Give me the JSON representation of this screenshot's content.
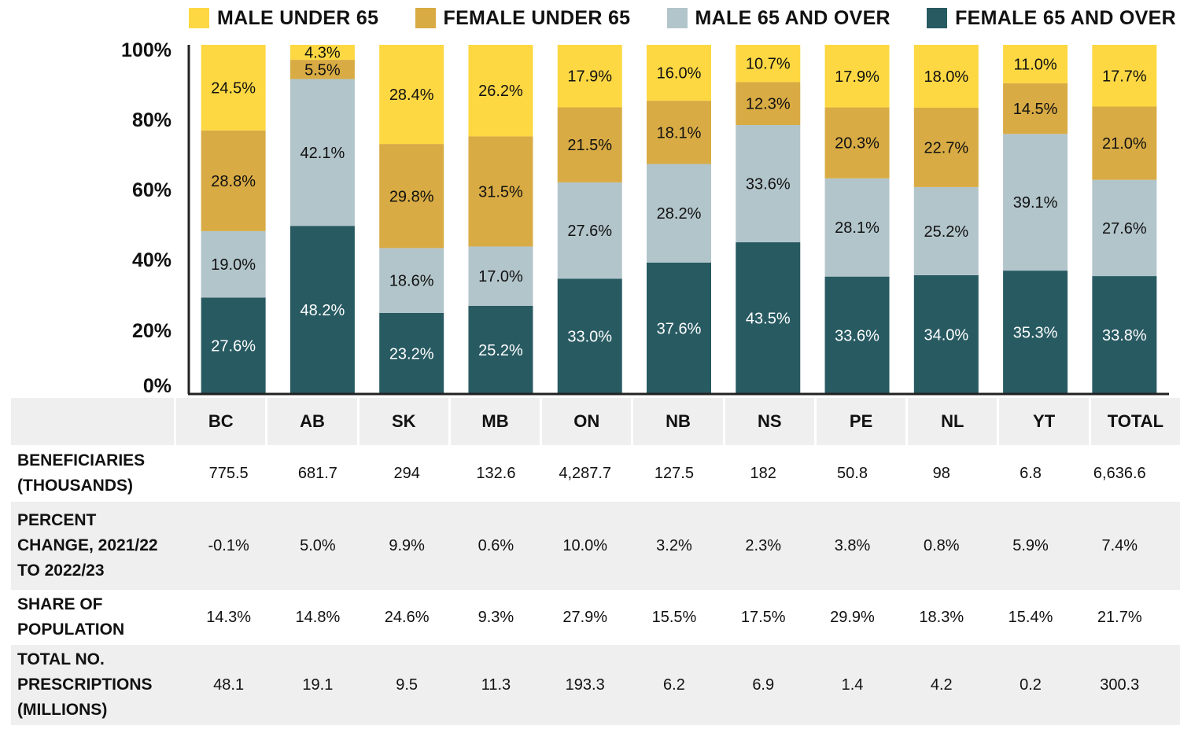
{
  "chart_data": {
    "type": "bar",
    "stacked": true,
    "categories": [
      "BC",
      "AB",
      "SK",
      "MB",
      "ON",
      "NB",
      "NS",
      "PE",
      "NL",
      "YT",
      "TOTAL"
    ],
    "series": [
      {
        "name": "FEMALE 65 AND OVER",
        "color": "#285a62",
        "values": [
          27.6,
          48.2,
          23.2,
          25.2,
          33.0,
          37.6,
          43.5,
          33.6,
          34.0,
          35.3,
          33.8
        ],
        "labels": [
          "27.6%",
          "48.2%",
          "23.2%",
          "25.2%",
          "33.0%",
          "37.6%",
          "43.5%",
          "33.6%",
          "34.0%",
          "35.3%",
          "33.8%"
        ]
      },
      {
        "name": "MALE 65 AND OVER",
        "color": "#b2c5cb",
        "values": [
          19.0,
          42.1,
          18.6,
          17.0,
          27.6,
          28.2,
          33.6,
          28.1,
          25.2,
          39.1,
          27.6
        ],
        "labels": [
          "19.0%",
          "42.1%",
          "18.6%",
          "17.0%",
          "27.6%",
          "28.2%",
          "33.6%",
          "28.1%",
          "25.2%",
          "39.1%",
          "27.6%"
        ]
      },
      {
        "name": "FEMALE UNDER 65",
        "color": "#d8ab44",
        "values": [
          28.8,
          5.5,
          29.8,
          31.5,
          21.5,
          18.1,
          12.3,
          20.3,
          22.7,
          14.5,
          21.0
        ],
        "labels": [
          "28.8%",
          "5.5%",
          "29.8%",
          "31.5%",
          "21.5%",
          "18.1%",
          "12.3%",
          "20.3%",
          "22.7%",
          "14.5%",
          "21.0%"
        ]
      },
      {
        "name": "MALE UNDER 65",
        "color": "#fdd843",
        "values": [
          24.5,
          4.3,
          28.4,
          26.2,
          17.9,
          16.0,
          10.7,
          17.9,
          18.0,
          11.0,
          17.7
        ],
        "labels": [
          "24.5%",
          "4.3%",
          "28.4%",
          "26.2%",
          "17.9%",
          "16.0%",
          "10.7%",
          "17.9%",
          "18.0%",
          "11.0%",
          "17.7%"
        ]
      }
    ],
    "legend_order": [
      "MALE UNDER 65",
      "FEMALE UNDER 65",
      "MALE 65 AND OVER",
      "FEMALE 65 AND OVER"
    ],
    "y_ticks": [
      "0%",
      "20%",
      "40%",
      "60%",
      "80%",
      "100%"
    ],
    "ylim": [
      0,
      100
    ],
    "legend_position": "top",
    "grid": false
  },
  "table": {
    "rows": [
      {
        "label": "BENEFICIARIES\n(THOUSANDS)",
        "values": [
          "775.5",
          "681.7",
          "294",
          "132.6",
          "4,287.7",
          "127.5",
          "182",
          "50.8",
          "98",
          "6.8",
          "6,636.6"
        ]
      },
      {
        "label": "PERCENT\nCHANGE, 2021/22\nTO 2022/23",
        "values": [
          "-0.1%",
          "5.0%",
          "9.9%",
          "0.6%",
          "10.0%",
          "3.2%",
          "2.3%",
          "3.8%",
          "0.8%",
          "5.9%",
          "7.4%"
        ]
      },
      {
        "label": "SHARE OF\nPOPULATION",
        "values": [
          "14.3%",
          "14.8%",
          "24.6%",
          "9.3%",
          "27.9%",
          "15.5%",
          "17.5%",
          "29.9%",
          "18.3%",
          "15.4%",
          "21.7%"
        ]
      },
      {
        "label": "TOTAL NO.\nPRESCRIPTIONS\n(MILLIONS)",
        "values": [
          "48.1",
          "19.1",
          "9.5",
          "11.3",
          "193.3",
          "6.2",
          "6.9",
          "1.4",
          "4.2",
          "0.2",
          "300.3"
        ]
      }
    ]
  }
}
